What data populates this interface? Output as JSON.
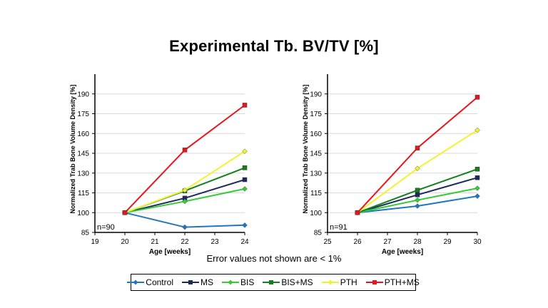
{
  "title": "Experimental Tb. BV/TV [%]",
  "note": "Error values not shown are < 1%",
  "colors": {
    "Control": "#1f77c4",
    "MS": "#1a2a5e",
    "BIS": "#33cc33",
    "BIS+MS": "#13801c",
    "PTH": "#f2f230",
    "PTH+MS": "#e8161b"
  },
  "chart_data": [
    {
      "type": "line",
      "xlabel": "Age [weeks]",
      "ylabel": "Normalized Trab Bone Volume Density [%]",
      "xlim": [
        19,
        24
      ],
      "ylim": [
        85,
        205
      ],
      "xticks": [
        19,
        20,
        21,
        22,
        23,
        24
      ],
      "yticks": [
        85,
        100,
        115,
        130,
        145,
        160,
        175,
        190
      ],
      "annotation": "n=90",
      "x": [
        20,
        22,
        24
      ],
      "series": [
        {
          "name": "Control",
          "values": [
            100,
            89,
            90.5
          ]
        },
        {
          "name": "MS",
          "values": [
            100,
            111,
            125
          ]
        },
        {
          "name": "BIS",
          "values": [
            100,
            108.5,
            118
          ]
        },
        {
          "name": "BIS+MS",
          "values": [
            100,
            116.5,
            134
          ]
        },
        {
          "name": "PTH",
          "values": [
            100,
            117,
            146.5
          ]
        },
        {
          "name": "PTH+MS",
          "values": [
            100,
            147.5,
            181.5
          ]
        }
      ]
    },
    {
      "type": "line",
      "xlabel": "Age [weeks]",
      "ylabel": "Normalized Trab Bone Volume Density [%]",
      "xlim": [
        25,
        30
      ],
      "ylim": [
        85,
        205
      ],
      "xticks": [
        25,
        26,
        27,
        28,
        29,
        30
      ],
      "yticks": [
        85,
        100,
        115,
        130,
        145,
        160,
        175,
        190
      ],
      "annotation": "n=91",
      "x": [
        26,
        28,
        30
      ],
      "series": [
        {
          "name": "Control",
          "values": [
            100,
            105,
            112.5
          ]
        },
        {
          "name": "MS",
          "values": [
            100,
            113.5,
            126.5
          ]
        },
        {
          "name": "BIS",
          "values": [
            100,
            109.5,
            118.5
          ]
        },
        {
          "name": "BIS+MS",
          "values": [
            100,
            117,
            133
          ]
        },
        {
          "name": "PTH",
          "values": [
            100,
            133.5,
            162.5
          ]
        },
        {
          "name": "PTH+MS",
          "values": [
            100,
            149,
            187.5
          ]
        }
      ]
    }
  ]
}
